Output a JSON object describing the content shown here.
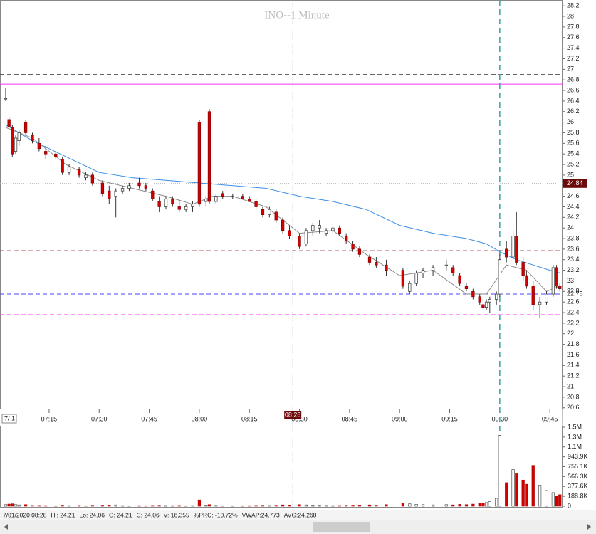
{
  "chart_data": {
    "type": "candlestick",
    "title": "INO--1 Minute",
    "xlim": [
      420.3,
      588.8
    ],
    "xticks": [
      {
        "value": 435,
        "label": "07:15"
      },
      {
        "value": 450,
        "label": "07:30"
      },
      {
        "value": 465,
        "label": "07:45"
      },
      {
        "value": 480,
        "label": "08:00"
      },
      {
        "value": 495,
        "label": "08:15"
      },
      {
        "value": 510,
        "label": "08:30"
      },
      {
        "value": 525,
        "label": "08:45"
      },
      {
        "value": 540,
        "label": "09:00"
      },
      {
        "value": 555,
        "label": "09:15"
      },
      {
        "value": 570,
        "label": "09:30"
      },
      {
        "value": 585,
        "label": "09:45"
      }
    ],
    "date_label": "7/ 1",
    "ylim": [
      20.57,
      28.31
    ],
    "yticks": [
      28.2,
      28,
      27.8,
      27.6,
      27.4,
      27.2,
      27,
      26.8,
      26.6,
      26.4,
      26.2,
      26,
      25.8,
      25.6,
      25.4,
      25.2,
      25,
      24.8,
      24.6,
      24.4,
      24.2,
      24,
      23.8,
      23.6,
      23.4,
      23.2,
      23,
      22.8,
      22.6,
      22.4,
      22.2,
      22,
      21.8,
      21.6,
      21.4,
      21.2,
      21,
      20.8,
      20.6
    ],
    "up_color": "#ffffff",
    "down_color": "#d40000",
    "candles": [
      {
        "t": 422,
        "o": 26.45,
        "h": 26.65,
        "l": 26.4,
        "c": 26.45,
        "v": 30000
      },
      {
        "t": 423,
        "o": 26.05,
        "h": 26.1,
        "l": 25.9,
        "c": 25.92,
        "v": 40000
      },
      {
        "t": 424,
        "o": 25.9,
        "h": 25.95,
        "l": 25.35,
        "c": 25.4,
        "v": 45000
      },
      {
        "t": 425,
        "o": 25.45,
        "h": 25.75,
        "l": 25.4,
        "c": 25.7,
        "v": 30000
      },
      {
        "t": 426,
        "o": 25.65,
        "h": 25.85,
        "l": 25.55,
        "c": 25.8,
        "v": 25000
      },
      {
        "t": 428,
        "o": 26.0,
        "h": 26.05,
        "l": 25.75,
        "c": 25.8,
        "v": 30000
      },
      {
        "t": 430,
        "o": 25.75,
        "h": 25.8,
        "l": 25.6,
        "c": 25.65,
        "v": 15000
      },
      {
        "t": 432,
        "o": 25.6,
        "h": 25.7,
        "l": 25.45,
        "c": 25.5,
        "v": 15000
      },
      {
        "t": 434,
        "o": 25.45,
        "h": 25.55,
        "l": 25.3,
        "c": 25.4,
        "v": 12000
      },
      {
        "t": 437,
        "o": 25.4,
        "h": 25.45,
        "l": 25.3,
        "c": 25.35,
        "v": 10000
      },
      {
        "t": 439,
        "o": 25.3,
        "h": 25.35,
        "l": 25.0,
        "c": 25.05,
        "v": 20000
      },
      {
        "t": 441,
        "o": 25.05,
        "h": 25.2,
        "l": 25.0,
        "c": 25.15,
        "v": 12000
      },
      {
        "t": 444,
        "o": 25.1,
        "h": 25.15,
        "l": 24.95,
        "c": 25.0,
        "v": 15000
      },
      {
        "t": 446,
        "o": 24.95,
        "h": 25.05,
        "l": 24.9,
        "c": 25.0,
        "v": 10000
      },
      {
        "t": 448,
        "o": 25.0,
        "h": 25.05,
        "l": 24.8,
        "c": 24.85,
        "v": 18000
      },
      {
        "t": 451,
        "o": 24.85,
        "h": 24.9,
        "l": 24.6,
        "c": 24.65,
        "v": 20000
      },
      {
        "t": 453,
        "o": 24.7,
        "h": 24.8,
        "l": 24.45,
        "c": 24.55,
        "v": 22000
      },
      {
        "t": 455,
        "o": 24.6,
        "h": 24.75,
        "l": 24.2,
        "c": 24.7,
        "v": 25000
      },
      {
        "t": 457,
        "o": 24.7,
        "h": 24.8,
        "l": 24.65,
        "c": 24.75,
        "v": 12000
      },
      {
        "t": 459,
        "o": 24.75,
        "h": 24.85,
        "l": 24.7,
        "c": 24.8,
        "v": 10000
      },
      {
        "t": 462,
        "o": 24.85,
        "h": 24.95,
        "l": 24.75,
        "c": 24.8,
        "v": 12000
      },
      {
        "t": 464,
        "o": 24.8,
        "h": 24.85,
        "l": 24.7,
        "c": 24.75,
        "v": 10000
      },
      {
        "t": 466,
        "o": 24.7,
        "h": 24.75,
        "l": 24.5,
        "c": 24.55,
        "v": 15000
      },
      {
        "t": 468,
        "o": 24.5,
        "h": 24.6,
        "l": 24.3,
        "c": 24.4,
        "v": 18000
      },
      {
        "t": 470,
        "o": 24.4,
        "h": 24.6,
        "l": 24.35,
        "c": 24.55,
        "v": 14000
      },
      {
        "t": 472,
        "o": 24.55,
        "h": 24.6,
        "l": 24.4,
        "c": 24.45,
        "v": 12000
      },
      {
        "t": 474,
        "o": 24.4,
        "h": 24.5,
        "l": 24.3,
        "c": 24.35,
        "v": 15000
      },
      {
        "t": 476,
        "o": 24.35,
        "h": 24.45,
        "l": 24.3,
        "c": 24.4,
        "v": 10000
      },
      {
        "t": 478,
        "o": 24.4,
        "h": 24.5,
        "l": 24.3,
        "c": 24.45,
        "v": 12000
      },
      {
        "t": 480,
        "o": 26.0,
        "h": 26.05,
        "l": 24.4,
        "c": 24.45,
        "v": 120000
      },
      {
        "t": 482,
        "o": 24.5,
        "h": 24.6,
        "l": 24.4,
        "c": 24.55,
        "v": 20000
      },
      {
        "t": 483,
        "o": 26.2,
        "h": 26.25,
        "l": 24.45,
        "c": 24.5,
        "v": 30000
      },
      {
        "t": 485,
        "o": 24.5,
        "h": 24.65,
        "l": 24.45,
        "c": 24.6,
        "v": 15000
      },
      {
        "t": 487,
        "o": 24.65,
        "h": 24.7,
        "l": 24.55,
        "c": 24.6,
        "v": 10000
      },
      {
        "t": 490,
        "o": 24.6,
        "h": 24.65,
        "l": 24.55,
        "c": 24.6,
        "v": 10000
      },
      {
        "t": 493,
        "o": 24.6,
        "h": 24.65,
        "l": 24.55,
        "c": 24.55,
        "v": 10000
      },
      {
        "t": 495,
        "o": 24.55,
        "h": 24.6,
        "l": 24.5,
        "c": 24.5,
        "v": 12000
      },
      {
        "t": 497,
        "o": 24.5,
        "h": 24.55,
        "l": 24.35,
        "c": 24.4,
        "v": 15000
      },
      {
        "t": 499,
        "o": 24.35,
        "h": 24.4,
        "l": 24.2,
        "c": 24.25,
        "v": 18000
      },
      {
        "t": 501,
        "o": 24.25,
        "h": 24.4,
        "l": 24.2,
        "c": 24.35,
        "v": 14000
      },
      {
        "t": 503,
        "o": 24.3,
        "h": 24.35,
        "l": 24.1,
        "c": 24.15,
        "v": 18000
      },
      {
        "t": 505,
        "o": 24.15,
        "h": 24.2,
        "l": 23.9,
        "c": 23.95,
        "v": 25000
      },
      {
        "t": 507,
        "o": 23.95,
        "h": 24.05,
        "l": 23.8,
        "c": 23.85,
        "v": 22000
      },
      {
        "t": 510,
        "o": 23.85,
        "h": 23.9,
        "l": 23.6,
        "c": 23.65,
        "v": 30000
      },
      {
        "t": 512,
        "o": 23.7,
        "h": 24.0,
        "l": 23.65,
        "c": 23.95,
        "v": 25000
      },
      {
        "t": 514,
        "o": 23.95,
        "h": 24.1,
        "l": 23.85,
        "c": 24.05,
        "v": 20000
      },
      {
        "t": 516,
        "o": 24.0,
        "h": 24.15,
        "l": 23.9,
        "c": 24.05,
        "v": 18000
      },
      {
        "t": 518,
        "o": 23.9,
        "h": 24.0,
        "l": 23.85,
        "c": 23.95,
        "v": 15000
      },
      {
        "t": 520,
        "o": 23.95,
        "h": 24.05,
        "l": 23.9,
        "c": 24.0,
        "v": 12000
      },
      {
        "t": 522,
        "o": 24.0,
        "h": 24.05,
        "l": 23.85,
        "c": 23.9,
        "v": 14000
      },
      {
        "t": 524,
        "o": 23.85,
        "h": 23.9,
        "l": 23.7,
        "c": 23.75,
        "v": 18000
      },
      {
        "t": 526,
        "o": 23.7,
        "h": 23.75,
        "l": 23.55,
        "c": 23.6,
        "v": 20000
      },
      {
        "t": 528,
        "o": 23.6,
        "h": 23.65,
        "l": 23.45,
        "c": 23.5,
        "v": 22000
      },
      {
        "t": 531,
        "o": 23.45,
        "h": 23.5,
        "l": 23.3,
        "c": 23.35,
        "v": 25000
      },
      {
        "t": 533,
        "o": 23.35,
        "h": 23.45,
        "l": 23.25,
        "c": 23.3,
        "v": 20000
      },
      {
        "t": 536,
        "o": 23.3,
        "h": 23.4,
        "l": 23.1,
        "c": 23.2,
        "v": 30000
      },
      {
        "t": 541,
        "o": 23.2,
        "h": 23.25,
        "l": 22.85,
        "c": 22.9,
        "v": 60000
      },
      {
        "t": 543,
        "o": 22.8,
        "h": 23.0,
        "l": 22.75,
        "c": 22.95,
        "v": 45000
      },
      {
        "t": 545,
        "o": 22.95,
        "h": 23.2,
        "l": 22.9,
        "c": 23.15,
        "v": 35000
      },
      {
        "t": 547,
        "o": 23.15,
        "h": 23.25,
        "l": 23.05,
        "c": 23.2,
        "v": 30000
      },
      {
        "t": 550,
        "o": 23.2,
        "h": 23.3,
        "l": 23.1,
        "c": 23.25,
        "v": 25000
      },
      {
        "t": 554,
        "o": 23.3,
        "h": 23.4,
        "l": 23.2,
        "c": 23.3,
        "v": 30000
      },
      {
        "t": 556,
        "o": 23.25,
        "h": 23.3,
        "l": 23.1,
        "c": 23.15,
        "v": 25000
      },
      {
        "t": 558,
        "o": 23.1,
        "h": 23.15,
        "l": 22.9,
        "c": 22.95,
        "v": 35000
      },
      {
        "t": 560,
        "o": 22.9,
        "h": 22.95,
        "l": 22.8,
        "c": 22.85,
        "v": 30000
      },
      {
        "t": 562,
        "o": 22.8,
        "h": 22.85,
        "l": 22.65,
        "c": 22.7,
        "v": 40000
      },
      {
        "t": 564,
        "o": 22.7,
        "h": 22.75,
        "l": 22.55,
        "c": 22.6,
        "v": 50000
      },
      {
        "t": 565,
        "o": 22.55,
        "h": 22.65,
        "l": 22.45,
        "c": 22.5,
        "v": 60000
      },
      {
        "t": 566,
        "o": 22.5,
        "h": 22.65,
        "l": 22.45,
        "c": 22.6,
        "v": 70000
      },
      {
        "t": 567,
        "o": 22.6,
        "h": 22.7,
        "l": 22.4,
        "c": 22.65,
        "v": 90000
      },
      {
        "t": 569,
        "o": 22.65,
        "h": 22.8,
        "l": 22.55,
        "c": 22.75,
        "v": 150000
      },
      {
        "t": 570,
        "o": 22.75,
        "h": 23.5,
        "l": 22.7,
        "c": 23.4,
        "v": 1350000
      },
      {
        "t": 572,
        "o": 23.6,
        "h": 23.75,
        "l": 23.35,
        "c": 23.45,
        "v": 450000
      },
      {
        "t": 574,
        "o": 23.45,
        "h": 23.95,
        "l": 23.4,
        "c": 23.85,
        "v": 700000
      },
      {
        "t": 575,
        "o": 23.85,
        "h": 24.3,
        "l": 23.3,
        "c": 23.35,
        "v": 620000
      },
      {
        "t": 577,
        "o": 23.35,
        "h": 23.45,
        "l": 23.0,
        "c": 23.1,
        "v": 500000
      },
      {
        "t": 578,
        "o": 23.1,
        "h": 23.2,
        "l": 22.85,
        "c": 22.9,
        "v": 420000
      },
      {
        "t": 580,
        "o": 22.9,
        "h": 23.0,
        "l": 22.45,
        "c": 22.55,
        "v": 780000
      },
      {
        "t": 582,
        "o": 22.55,
        "h": 22.7,
        "l": 22.3,
        "c": 22.6,
        "v": 400000
      },
      {
        "t": 584,
        "o": 22.6,
        "h": 22.8,
        "l": 22.55,
        "c": 22.75,
        "v": 300000
      },
      {
        "t": 586,
        "o": 22.75,
        "h": 23.3,
        "l": 22.7,
        "c": 23.25,
        "v": 260000
      },
      {
        "t": 587,
        "o": 23.25,
        "h": 23.3,
        "l": 22.85,
        "c": 22.9,
        "v": 200000
      },
      {
        "t": 588,
        "o": 22.9,
        "h": 22.95,
        "l": 22.8,
        "c": 22.85,
        "v": 220000
      }
    ],
    "lines": [
      {
        "color": "#3a8ee6",
        "x": [
          422,
          430,
          440,
          450,
          460,
          470,
          480,
          490,
          500,
          510,
          520,
          530,
          540,
          550,
          560,
          566,
          570,
          575,
          580,
          585,
          588
        ],
        "values": [
          25.95,
          25.65,
          25.35,
          25.05,
          24.95,
          24.9,
          24.85,
          24.8,
          24.75,
          24.6,
          24.5,
          24.35,
          24.05,
          23.9,
          23.8,
          23.7,
          23.55,
          23.4,
          23.3,
          23.2,
          23.15
        ]
      },
      {
        "color": "#8a8a8a",
        "x": [
          422,
          430,
          440,
          450,
          460,
          470,
          478,
          484,
          490,
          500,
          510,
          520,
          530,
          540,
          550,
          560,
          566,
          572,
          578,
          584,
          588
        ],
        "values": [
          25.9,
          25.7,
          25.2,
          24.9,
          24.75,
          24.6,
          24.45,
          24.6,
          24.6,
          24.4,
          23.9,
          23.95,
          23.5,
          23.1,
          23.2,
          22.75,
          22.75,
          23.3,
          23.2,
          22.8,
          22.9
        ]
      }
    ],
    "levels": [
      {
        "value": 26.9,
        "color": "#333333",
        "dash": "6,4",
        "tag": false
      },
      {
        "value": 26.72,
        "color": "#ff33ff",
        "dash": "none",
        "tag": false
      },
      {
        "value": 23.57,
        "color": "#8b2a2a",
        "dash": "6,4",
        "tag": false
      },
      {
        "value": 22.75,
        "color": "#4a4aff",
        "dash": "6,4",
        "tag": true
      },
      {
        "value": 22.36,
        "color": "#ff33ff",
        "dash": "6,4",
        "tag": false
      }
    ],
    "marker_time": 570,
    "marker_color": "#3aa0a0",
    "crosshair": {
      "x": {
        "value": 508,
        "label": "08:28"
      },
      "y": 24.84
    },
    "volume": {
      "ylim": [
        0,
        1510400
      ],
      "yticks": [
        {
          "value": 1510400,
          "label": "1.5M"
        },
        {
          "value": 1321600,
          "label": "1.3M"
        },
        {
          "value": 1132800,
          "label": "1.1M"
        },
        {
          "value": 943900,
          "label": "943.9K"
        },
        {
          "value": 755100,
          "label": "755.1K"
        },
        {
          "value": 566300,
          "label": "566.3K"
        },
        {
          "value": 377600,
          "label": "377.6K"
        },
        {
          "value": 188800,
          "label": "188.8K"
        },
        0
      ]
    },
    "status": [
      "7/01/2020 08:28",
      "Hi: 24.21",
      "Lo: 24.06",
      "O: 24.21",
      "C: 24.06",
      "V: 16,355",
      "%PRC: -10.72%",
      "VWAP:24.773",
      "AVG:24.268"
    ]
  }
}
